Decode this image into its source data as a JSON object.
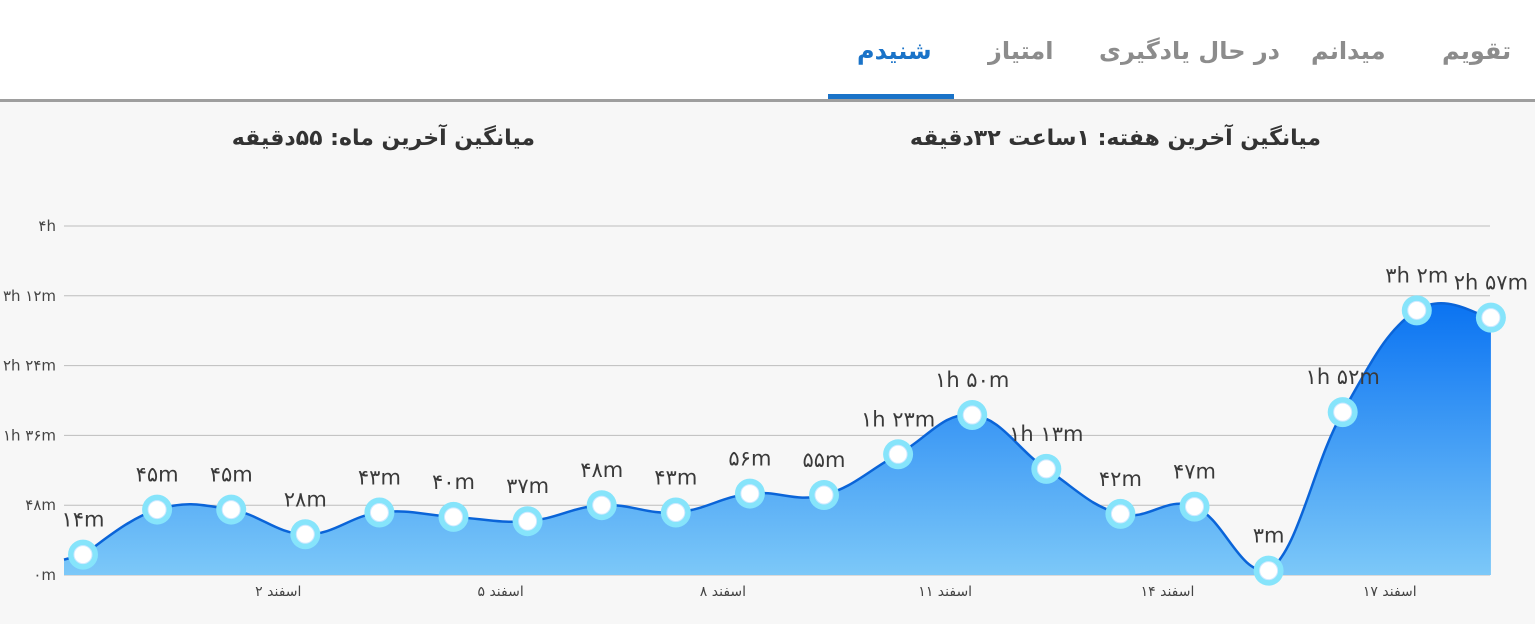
{
  "tabs": [
    {
      "label": "تقویم"
    },
    {
      "label": "میدانم"
    },
    {
      "label": "در حال یادگیری"
    },
    {
      "label": "امتیاز"
    },
    {
      "label": "شنیدم"
    }
  ],
  "stats": {
    "week_label": "میانگین آخرین هفته:",
    "week_value": "۱ساعت  ۳۲دقیقه",
    "month_label": "میانگین آخرین ماه:",
    "month_value": "۵۵دقیقه"
  },
  "colors": {
    "accent": "#1a73c8",
    "area_top": "#0a73f2",
    "area_bottom": "#7cc8f8",
    "marker_ring": "#86e4fb",
    "marker_fill": "#ffffff"
  },
  "chart_data": {
    "type": "area",
    "y_unit": "minutes",
    "ylim": [
      0,
      240
    ],
    "y_ticks": [
      {
        "value": 0,
        "label": "۰m"
      },
      {
        "value": 48,
        "label": "۴۸m"
      },
      {
        "value": 96,
        "label": "۱h ۳۶m"
      },
      {
        "value": 144,
        "label": "۲h ۲۴m"
      },
      {
        "value": 192,
        "label": "۳h ۱۲m"
      },
      {
        "value": 240,
        "label": "۴h"
      }
    ],
    "x_tick_labels": [
      {
        "index": 3,
        "label": "۲ اسفند"
      },
      {
        "index": 6,
        "label": "۵ اسفند"
      },
      {
        "index": 9,
        "label": "۸ اسفند"
      },
      {
        "index": 12,
        "label": "۱۱ اسفند"
      },
      {
        "index": 15,
        "label": "۱۴ اسفند"
      },
      {
        "index": 18,
        "label": "۱۷ اسفند"
      }
    ],
    "grid": true,
    "points": [
      {
        "index": 0,
        "value": 14,
        "label": "۱۴m"
      },
      {
        "index": 1,
        "value": 45,
        "label": "۴۵m"
      },
      {
        "index": 2,
        "value": 45,
        "label": "۴۵m"
      },
      {
        "index": 3,
        "value": 28,
        "label": "۲۸m"
      },
      {
        "index": 4,
        "value": 43,
        "label": "۴۳m"
      },
      {
        "index": 5,
        "value": 40,
        "label": "۴۰m"
      },
      {
        "index": 6,
        "value": 37,
        "label": "۳۷m"
      },
      {
        "index": 7,
        "value": 48,
        "label": "۴۸m"
      },
      {
        "index": 8,
        "value": 43,
        "label": "۴۳m"
      },
      {
        "index": 9,
        "value": 56,
        "label": "۵۶m"
      },
      {
        "index": 10,
        "value": 55,
        "label": "۵۵m"
      },
      {
        "index": 11,
        "value": 83,
        "label": "۱h ۲۳m"
      },
      {
        "index": 12,
        "value": 110,
        "label": "۱h ۵۰m"
      },
      {
        "index": 13,
        "value": 73,
        "label": "۱h ۱۳m"
      },
      {
        "index": 14,
        "value": 42,
        "label": "۴۲m"
      },
      {
        "index": 15,
        "value": 47,
        "label": "۴۷m"
      },
      {
        "index": 16,
        "value": 3,
        "label": "۳m"
      },
      {
        "index": 17,
        "value": 112,
        "label": "۱h ۵۲m"
      },
      {
        "index": 18,
        "value": 182,
        "label": "۳h ۲m"
      },
      {
        "index": 19,
        "value": 177,
        "label": "۲h ۵۷m"
      }
    ]
  }
}
